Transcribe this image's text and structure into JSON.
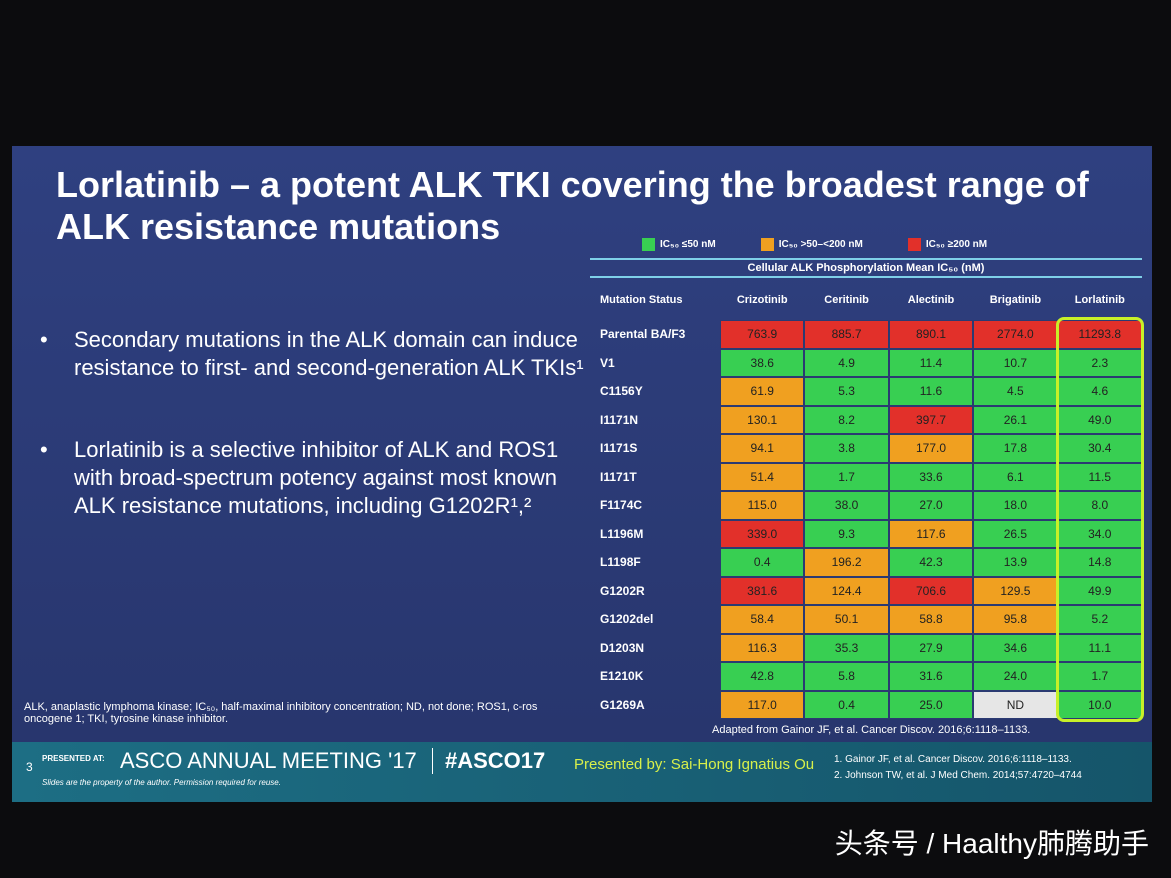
{
  "slide": {
    "title": "Lorlatinib – a potent ALK TKI covering the broadest range of ALK resistance mutations",
    "bullets": [
      "Secondary mutations in the ALK domain can induce resistance to first- and second-generation ALK TKIs¹",
      "Lorlatinib is a selective inhibitor of ALK and ROS1 with broad-spectrum potency against most known ALK resistance mutations, including G1202R¹,²"
    ],
    "abbreviations": "ALK, anaplastic lymphoma kinase; IC₅₀, half-maximal inhibitory concentration; ND, not done; ROS1, c-ros oncogene 1; TKI, tyrosine kinase inhibitor.",
    "legend": [
      {
        "color": "#38cf52",
        "label": "IC₅₀ ≤50 nM"
      },
      {
        "color": "#f0a020",
        "label": "IC₅₀ >50–<200 nM"
      },
      {
        "color": "#e2302a",
        "label": "IC₅₀ ≥200 nM"
      }
    ],
    "table": {
      "caption": "Cellular ALK Phosphorylation Mean IC₅₀ (nM)",
      "columns": [
        "Mutation Status",
        "Crizotinib",
        "Ceritinib",
        "Alectinib",
        "Brigatinib",
        "Lorlatinib"
      ],
      "rows": [
        {
          "label": "Parental BA/F3",
          "values": [
            "763.9",
            "885.7",
            "890.1",
            "2774.0",
            "11293.8"
          ],
          "colors": [
            "#e2302a",
            "#e2302a",
            "#e2302a",
            "#e2302a",
            "#e2302a"
          ]
        },
        {
          "label": "V1",
          "values": [
            "38.6",
            "4.9",
            "11.4",
            "10.7",
            "2.3"
          ],
          "colors": [
            "#38cf52",
            "#38cf52",
            "#38cf52",
            "#38cf52",
            "#38cf52"
          ]
        },
        {
          "label": "C1156Y",
          "values": [
            "61.9",
            "5.3",
            "11.6",
            "4.5",
            "4.6"
          ],
          "colors": [
            "#f0a020",
            "#38cf52",
            "#38cf52",
            "#38cf52",
            "#38cf52"
          ]
        },
        {
          "label": "I1171N",
          "values": [
            "130.1",
            "8.2",
            "397.7",
            "26.1",
            "49.0"
          ],
          "colors": [
            "#f0a020",
            "#38cf52",
            "#e2302a",
            "#38cf52",
            "#38cf52"
          ]
        },
        {
          "label": "I1171S",
          "values": [
            "94.1",
            "3.8",
            "177.0",
            "17.8",
            "30.4"
          ],
          "colors": [
            "#f0a020",
            "#38cf52",
            "#f0a020",
            "#38cf52",
            "#38cf52"
          ]
        },
        {
          "label": "I1171T",
          "values": [
            "51.4",
            "1.7",
            "33.6",
            "6.1",
            "11.5"
          ],
          "colors": [
            "#f0a020",
            "#38cf52",
            "#38cf52",
            "#38cf52",
            "#38cf52"
          ]
        },
        {
          "label": "F1174C",
          "values": [
            "115.0",
            "38.0",
            "27.0",
            "18.0",
            "8.0"
          ],
          "colors": [
            "#f0a020",
            "#38cf52",
            "#38cf52",
            "#38cf52",
            "#38cf52"
          ]
        },
        {
          "label": "L1196M",
          "values": [
            "339.0",
            "9.3",
            "117.6",
            "26.5",
            "34.0"
          ],
          "colors": [
            "#e2302a",
            "#38cf52",
            "#f0a020",
            "#38cf52",
            "#38cf52"
          ]
        },
        {
          "label": "L1198F",
          "values": [
            "0.4",
            "196.2",
            "42.3",
            "13.9",
            "14.8"
          ],
          "colors": [
            "#38cf52",
            "#f0a020",
            "#38cf52",
            "#38cf52",
            "#38cf52"
          ]
        },
        {
          "label": "G1202R",
          "values": [
            "381.6",
            "124.4",
            "706.6",
            "129.5",
            "49.9"
          ],
          "colors": [
            "#e2302a",
            "#f0a020",
            "#e2302a",
            "#f0a020",
            "#38cf52"
          ]
        },
        {
          "label": "G1202del",
          "values": [
            "58.4",
            "50.1",
            "58.8",
            "95.8",
            "5.2"
          ],
          "colors": [
            "#f0a020",
            "#f0a020",
            "#f0a020",
            "#f0a020",
            "#38cf52"
          ]
        },
        {
          "label": "D1203N",
          "values": [
            "116.3",
            "35.3",
            "27.9",
            "34.6",
            "11.1"
          ],
          "colors": [
            "#f0a020",
            "#38cf52",
            "#38cf52",
            "#38cf52",
            "#38cf52"
          ]
        },
        {
          "label": "E1210K",
          "values": [
            "42.8",
            "5.8",
            "31.6",
            "24.0",
            "1.7"
          ],
          "colors": [
            "#38cf52",
            "#38cf52",
            "#38cf52",
            "#38cf52",
            "#38cf52"
          ]
        },
        {
          "label": "G1269A",
          "values": [
            "117.0",
            "0.4",
            "25.0",
            "ND",
            "10.0"
          ],
          "colors": [
            "#f0a020",
            "#38cf52",
            "#38cf52",
            "#e6e6e6",
            "#38cf52"
          ]
        }
      ],
      "source": "Adapted from Gainor JF, et al. Cancer Discov. 2016;6:1118–1133."
    },
    "footer": {
      "page": "3",
      "presented_at": "PRESENTED AT:",
      "meeting": "ASCO ANNUAL MEETING '17",
      "hashtag": "#ASCO17",
      "notice": "Slides are the property of the author. Permission required for reuse.",
      "presenter": "Presented by: Sai-Hong Ignatius Ou",
      "references": [
        "1. Gainor JF, et al. Cancer Discov. 2016;6:1118–1133.",
        "2. Johnson TW, et al. J Med Chem. 2014;57:4720–4744"
      ]
    }
  },
  "watermark": "头条号 / Haalthy肺腾助手"
}
